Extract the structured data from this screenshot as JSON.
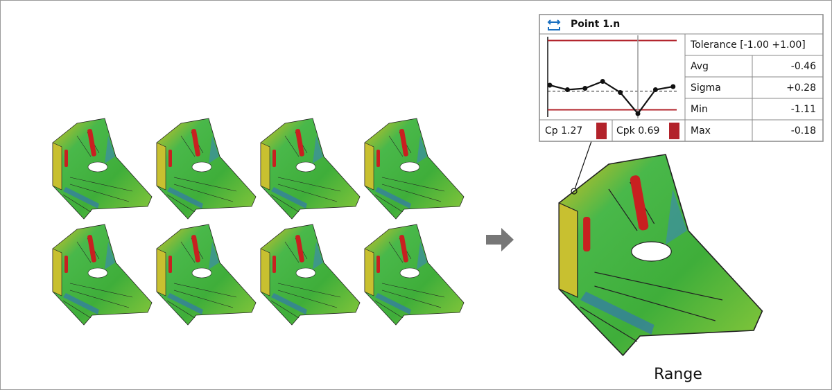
{
  "panel": {
    "title": "Point 1.n",
    "tolerance": "Tolerance [-1.00 +1.00]",
    "stats": [
      [
        "Avg",
        "-0.46"
      ],
      [
        "Sigma",
        "+0.28"
      ],
      [
        "Min",
        "-1.11"
      ],
      [
        "Max",
        "-0.18"
      ]
    ],
    "cp": "Cp 1.27",
    "cpk": "Cpk 0.69",
    "chart": {
      "type": "line",
      "values": [
        -0.29,
        -0.42,
        -0.38,
        -0.18,
        -0.5,
        -1.11,
        -0.42,
        -0.33
      ],
      "ylim": [
        -1.25,
        1.15
      ],
      "limits": [
        -1,
        1
      ],
      "average": -0.46
    }
  },
  "caption": "Range"
}
